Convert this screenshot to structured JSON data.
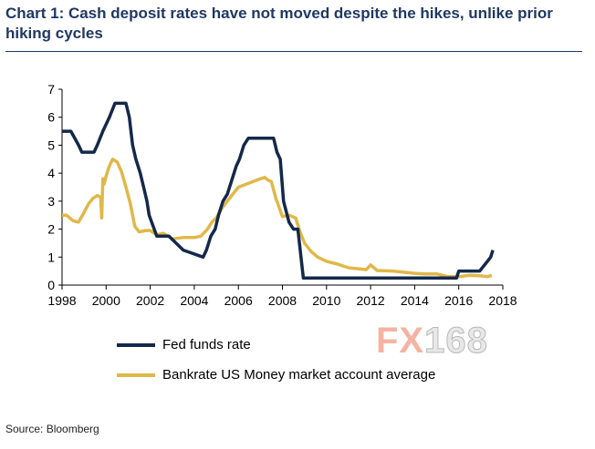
{
  "title": "Chart 1: Cash deposit rates have not moved despite the hikes, unlike prior hiking cycles",
  "source": "Source: Bloomberg",
  "watermark": {
    "part1": "FX",
    "part2": "168"
  },
  "colors": {
    "fed": "#14284b",
    "bankrate": "#e0b84a",
    "title": "#1f3864"
  },
  "chart_data": {
    "type": "line",
    "title": "Chart 1: Cash deposit rates have not moved despite the hikes, unlike prior hiking cycles",
    "xlabel": "",
    "ylabel": "",
    "xlim": [
      1998,
      2018
    ],
    "ylim": [
      0,
      7
    ],
    "xticks": [
      "1998",
      "2000",
      "2002",
      "2004",
      "2006",
      "2008",
      "2010",
      "2012",
      "2014",
      "2016",
      "2018"
    ],
    "yticks": [
      "0",
      "1",
      "2",
      "3",
      "4",
      "5",
      "6",
      "7"
    ],
    "grid": false,
    "legend_position": "bottom-left",
    "series": [
      {
        "name": "Fed funds rate",
        "color": "#14284b",
        "x": [
          1998.0,
          1998.4,
          1998.75,
          1998.9,
          1999.45,
          1999.6,
          1999.85,
          2000.0,
          2000.15,
          2000.4,
          2000.55,
          2000.9,
          2001.05,
          2001.2,
          2001.35,
          2001.55,
          2001.7,
          2001.85,
          2001.95,
          2002.3,
          2002.85,
          2003.5,
          2004.4,
          2004.55,
          2004.75,
          2004.95,
          2005.1,
          2005.3,
          2005.5,
          2005.7,
          2005.9,
          2006.05,
          2006.25,
          2006.45,
          2007.6,
          2007.75,
          2007.9,
          2008.05,
          2008.3,
          2008.5,
          2008.7,
          2008.95,
          2015.9,
          2016.0,
          2016.95,
          2017.2,
          2017.45,
          2017.55
        ],
        "y": [
          5.5,
          5.5,
          5.0,
          4.75,
          4.75,
          5.0,
          5.5,
          5.75,
          6.0,
          6.5,
          6.5,
          6.5,
          6.0,
          5.0,
          4.5,
          4.0,
          3.5,
          3.0,
          2.5,
          1.75,
          1.75,
          1.25,
          1.0,
          1.25,
          1.75,
          2.0,
          2.5,
          3.0,
          3.25,
          3.75,
          4.25,
          4.5,
          5.0,
          5.25,
          5.25,
          4.75,
          4.5,
          3.0,
          2.25,
          2.0,
          2.0,
          0.25,
          0.25,
          0.5,
          0.5,
          0.75,
          1.0,
          1.25
        ]
      },
      {
        "name": "Bankrate US Money market account average",
        "color": "#e0b84a",
        "x": [
          1998.0,
          1998.2,
          1998.5,
          1998.75,
          1999.0,
          1999.2,
          1999.4,
          1999.6,
          1999.75,
          1999.8,
          1999.85,
          1999.9,
          2000.0,
          2000.1,
          2000.2,
          2000.3,
          2000.5,
          2000.7,
          2000.9,
          2001.1,
          2001.3,
          2001.5,
          2001.8,
          2002.0,
          2002.3,
          2002.6,
          2003.0,
          2003.5,
          2004.0,
          2004.3,
          2004.6,
          2004.8,
          2005.0,
          2005.3,
          2005.6,
          2006.0,
          2006.5,
          2007.0,
          2007.2,
          2007.35,
          2007.5,
          2007.7,
          2008.0,
          2008.3,
          2008.6,
          2008.8,
          2009.0,
          2009.3,
          2009.6,
          2010.0,
          2010.5,
          2011.0,
          2011.5,
          2011.8,
          2012.0,
          2012.3,
          2013.0,
          2014.0,
          2014.5,
          2015.0,
          2015.5,
          2016.0,
          2016.5,
          2017.0,
          2017.3,
          2017.5
        ],
        "y": [
          2.5,
          2.5,
          2.3,
          2.25,
          2.6,
          2.9,
          3.1,
          3.2,
          3.15,
          2.4,
          3.8,
          3.6,
          3.9,
          4.15,
          4.35,
          4.5,
          4.4,
          4.05,
          3.5,
          2.9,
          2.1,
          1.9,
          1.95,
          1.95,
          1.8,
          1.85,
          1.65,
          1.7,
          1.7,
          1.75,
          2.0,
          2.25,
          2.4,
          2.8,
          3.1,
          3.5,
          3.65,
          3.8,
          3.85,
          3.75,
          3.7,
          3.1,
          2.45,
          2.5,
          2.4,
          1.9,
          1.5,
          1.2,
          1.0,
          0.85,
          0.75,
          0.62,
          0.58,
          0.55,
          0.72,
          0.52,
          0.5,
          0.42,
          0.4,
          0.4,
          0.3,
          0.3,
          0.35,
          0.33,
          0.3,
          0.35
        ]
      }
    ]
  }
}
